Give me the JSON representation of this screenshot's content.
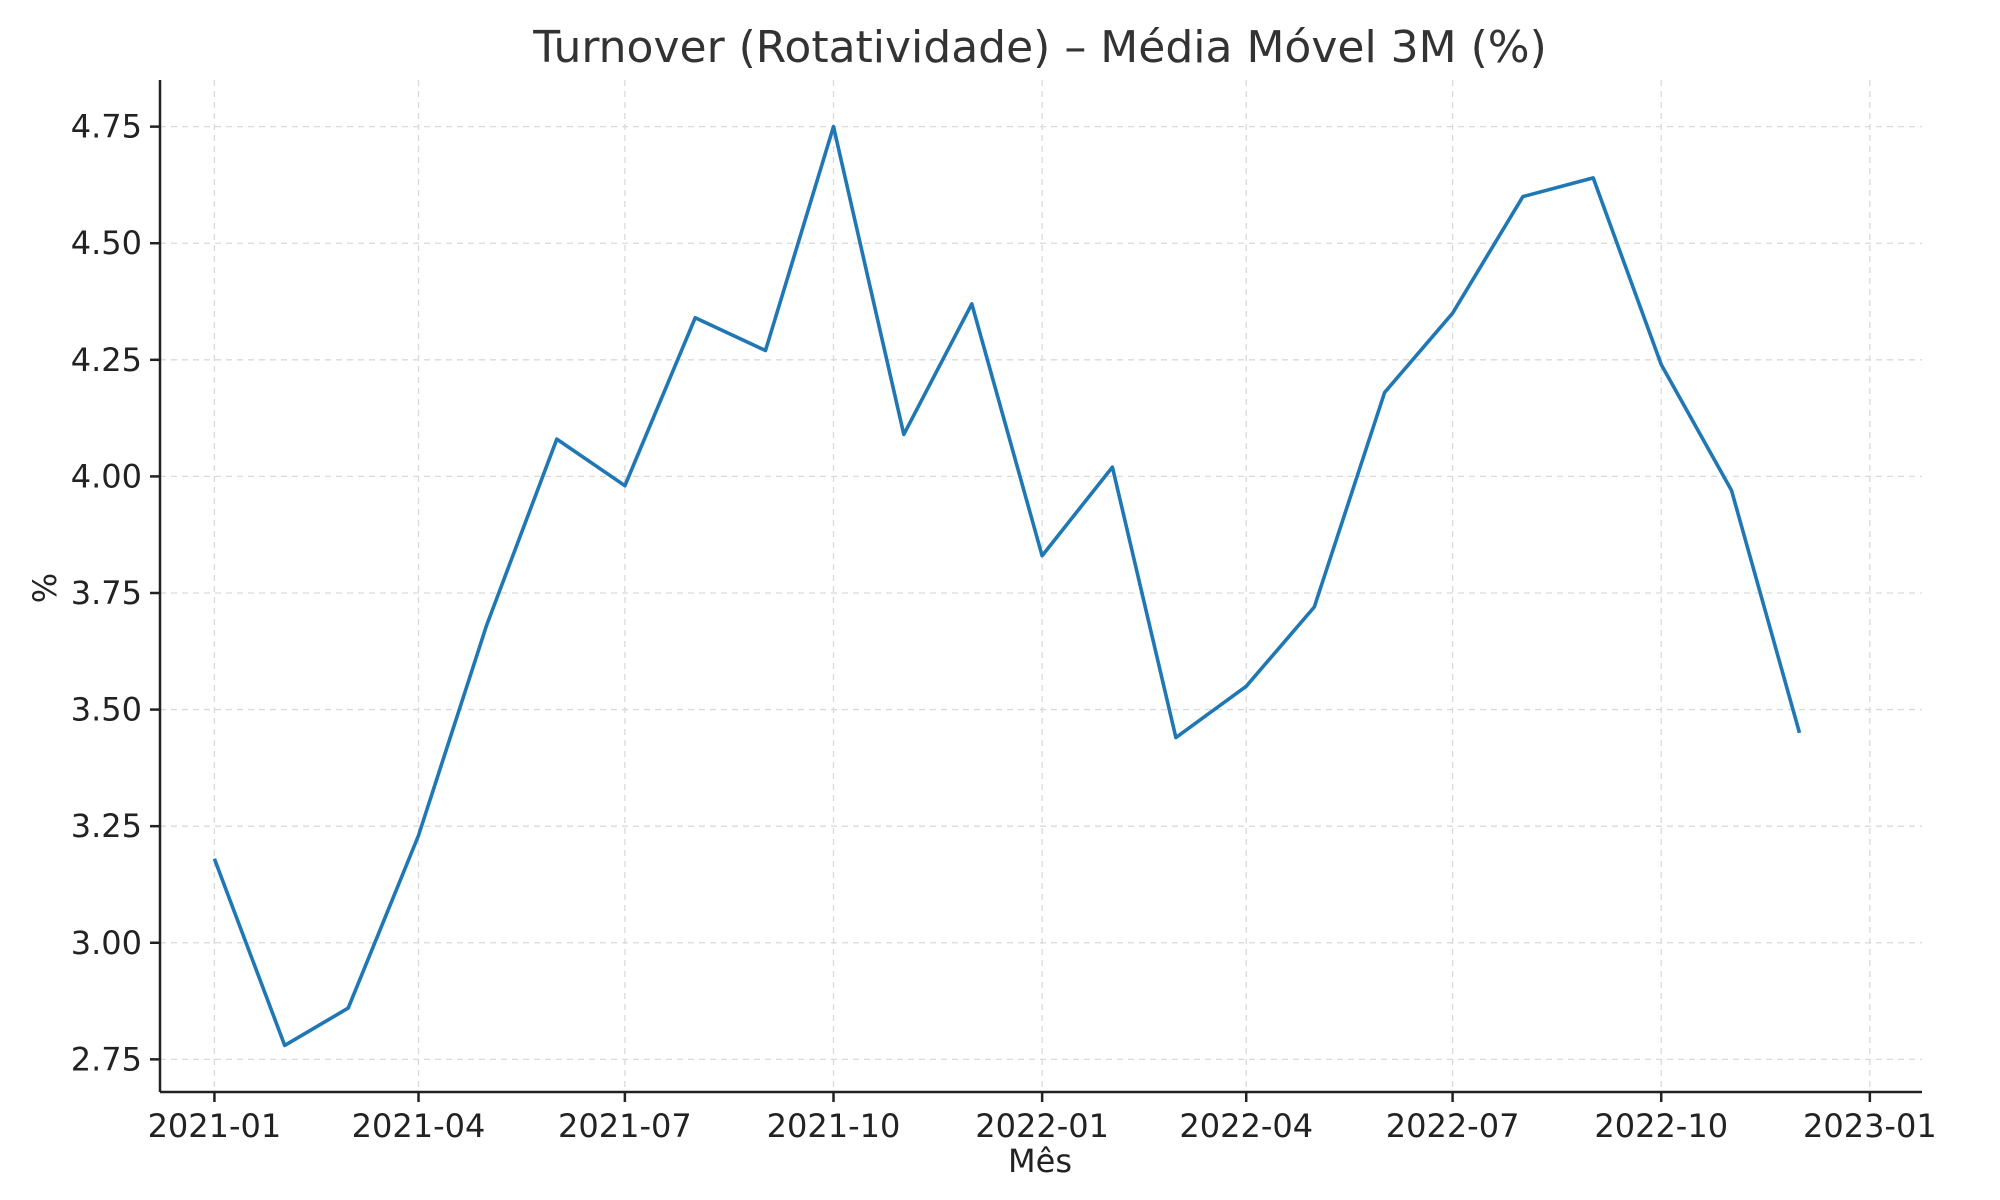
{
  "chart_data": {
    "type": "line",
    "title": "Turnover (Rotatividade) – Média Móvel 3M (%)",
    "xlabel": "Mês",
    "ylabel": "%",
    "x": [
      "2021-01",
      "2021-02",
      "2021-03",
      "2021-04",
      "2021-05",
      "2021-06",
      "2021-07",
      "2021-08",
      "2021-09",
      "2021-10",
      "2021-11",
      "2021-12",
      "2022-01",
      "2022-02",
      "2022-03",
      "2022-04",
      "2022-05",
      "2022-06",
      "2022-07",
      "2022-08",
      "2022-09",
      "2022-10",
      "2022-11",
      "2022-12"
    ],
    "series": [
      {
        "values": [
          3.18,
          2.78,
          2.86,
          3.23,
          3.68,
          4.08,
          3.98,
          4.34,
          4.27,
          4.75,
          4.09,
          4.37,
          3.83,
          4.02,
          3.44,
          3.55,
          3.72,
          4.18,
          4.35,
          4.6,
          4.64,
          4.24,
          3.97,
          3.45
        ],
        "color": "#1f77b4"
      }
    ],
    "x_ticks": [
      "2021-01",
      "2021-04",
      "2021-07",
      "2021-10",
      "2022-01",
      "2022-04",
      "2022-07",
      "2022-10",
      "2023-01"
    ],
    "y_ticks": [
      "2.75",
      "3.00",
      "3.25",
      "3.50",
      "3.75",
      "4.00",
      "4.25",
      "4.50",
      "4.75"
    ],
    "xlim": [
      "2020-12-08",
      "2023-01-24"
    ],
    "ylim": [
      2.68,
      4.85
    ],
    "grid": true,
    "legend": "none"
  }
}
